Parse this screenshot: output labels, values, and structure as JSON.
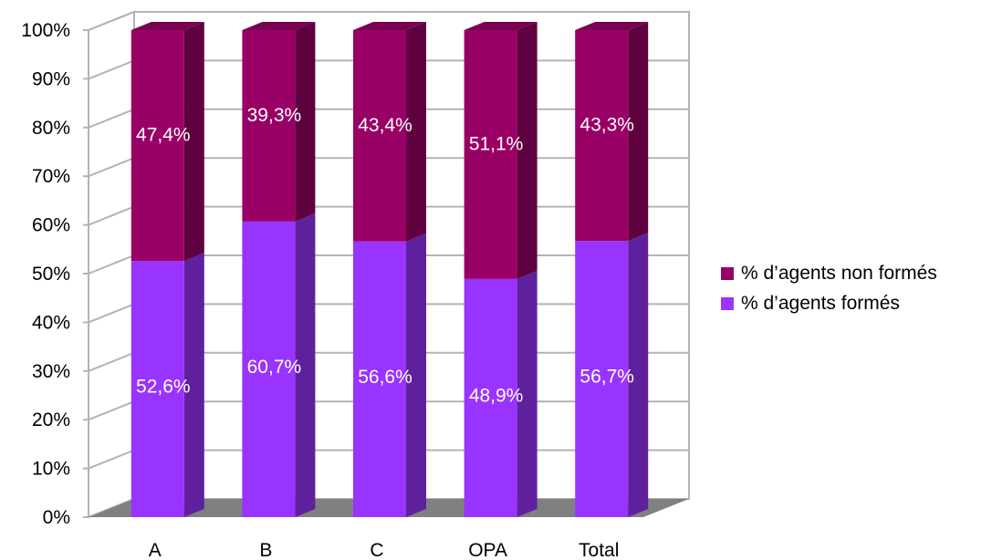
{
  "chart_data": {
    "type": "bar",
    "stacked": true,
    "percent": true,
    "three_d": true,
    "title": "",
    "xlabel": "",
    "ylabel": "",
    "categories": [
      "A",
      "B",
      "C",
      "OPA",
      "Total"
    ],
    "ylim": [
      0,
      100
    ],
    "yticks": [
      "0%",
      "10%",
      "20%",
      "30%",
      "40%",
      "50%",
      "60%",
      "70%",
      "80%",
      "90%",
      "100%"
    ],
    "grid": true,
    "legend_position": "right",
    "series": [
      {
        "name": "% d’agents formés",
        "values": [
          52.6,
          60.7,
          56.6,
          48.9,
          56.7
        ],
        "labels": [
          "52,6%",
          "60,7%",
          "56,6%",
          "48,9%",
          "56,7%"
        ],
        "color": "#9933ff"
      },
      {
        "name": "% d’agents non formés",
        "values": [
          47.4,
          39.3,
          43.4,
          51.1,
          43.3
        ],
        "labels": [
          "47,4%",
          "39,3%",
          "43,4%",
          "51,1%",
          "43,3%"
        ],
        "color": "#990066"
      }
    ],
    "legend_order": [
      1,
      0
    ]
  }
}
